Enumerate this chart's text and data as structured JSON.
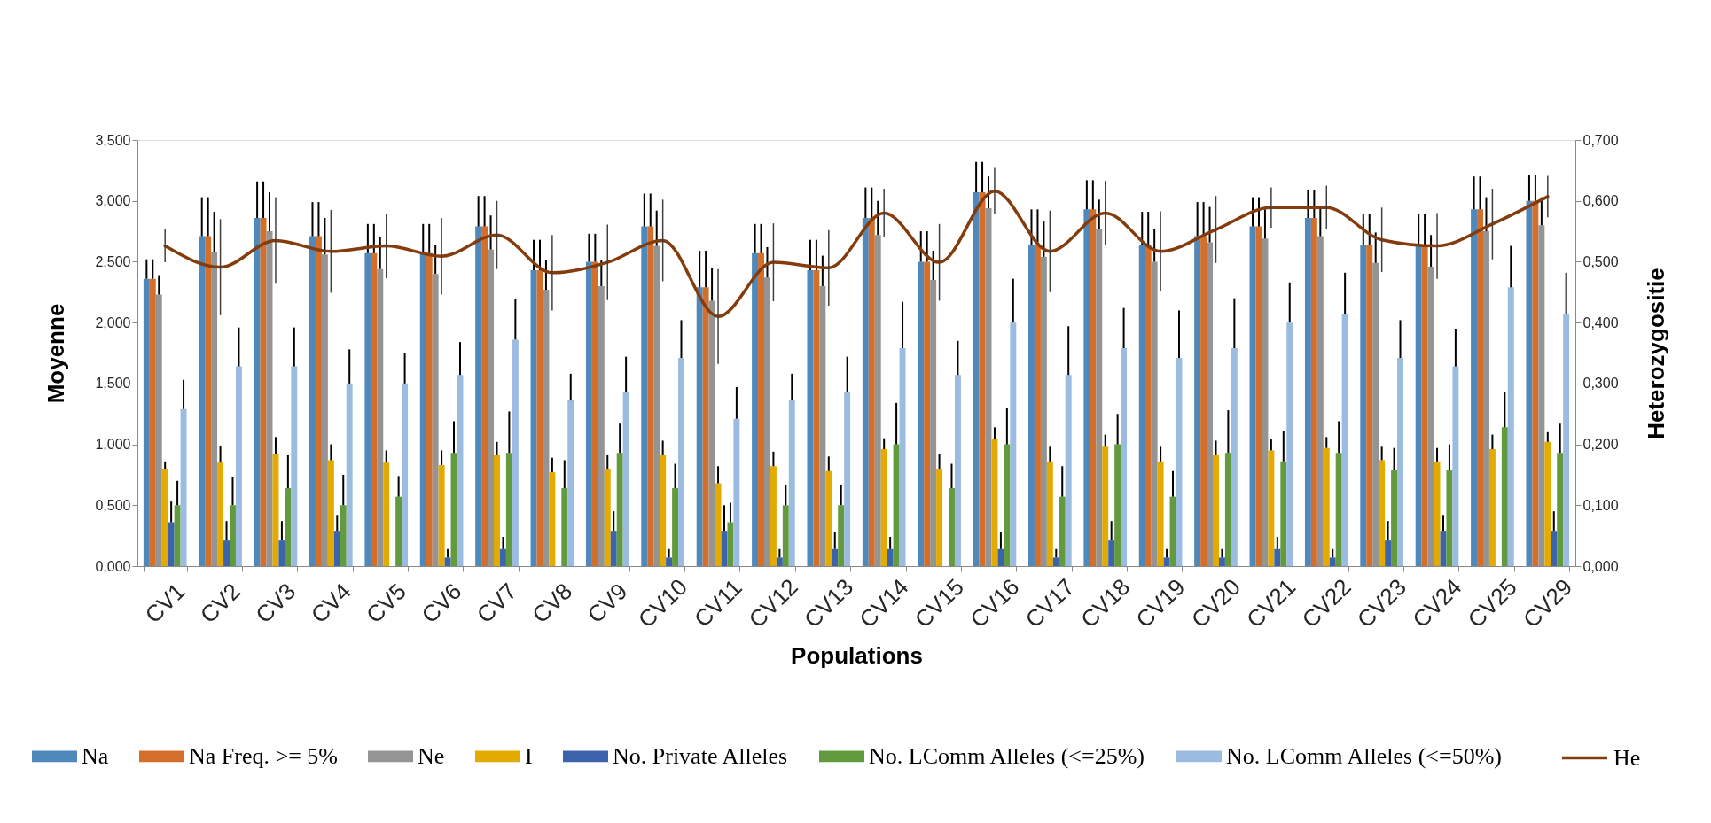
{
  "chart_data": {
    "type": "bar",
    "xlabel": "Populations",
    "ylabel": "Moyenne",
    "y2label": "Heterozygositie",
    "categories": [
      "CV1",
      "CV2",
      "CV3",
      "CV4",
      "CV5",
      "CV6",
      "CV7",
      "CV8",
      "CV9",
      "CV10",
      "CV11",
      "CV12",
      "CV13",
      "CV14",
      "CV15",
      "CV16",
      "CV17",
      "CV18",
      "CV19",
      "CV20",
      "CV21",
      "CV22",
      "CV23",
      "CV24",
      "CV25",
      "CV29"
    ],
    "series": [
      {
        "name": "Na",
        "color": "#4f88bb",
        "values": [
          2.36,
          2.71,
          2.86,
          2.71,
          2.57,
          2.57,
          2.79,
          2.43,
          2.5,
          2.79,
          2.29,
          2.57,
          2.43,
          2.86,
          2.5,
          3.07,
          2.64,
          2.93,
          2.64,
          2.71,
          2.79,
          2.86,
          2.64,
          2.64,
          2.93,
          3.0
        ],
        "errors": [
          [
            2.36,
            2.52
          ],
          [
            2.71,
            3.03
          ],
          [
            2.86,
            3.16
          ],
          [
            2.71,
            2.99
          ],
          [
            2.57,
            2.81
          ],
          [
            2.57,
            2.81
          ],
          [
            2.79,
            3.04
          ],
          [
            2.43,
            2.68
          ],
          [
            2.5,
            2.73
          ],
          [
            2.79,
            3.06
          ],
          [
            2.29,
            2.59
          ],
          [
            2.57,
            2.81
          ],
          [
            2.43,
            2.68
          ],
          [
            2.86,
            3.11
          ],
          [
            2.5,
            2.75
          ],
          [
            3.07,
            3.32
          ],
          [
            2.64,
            2.93
          ],
          [
            2.93,
            3.17
          ],
          [
            2.64,
            2.91
          ],
          [
            2.71,
            2.99
          ],
          [
            2.79,
            3.03
          ],
          [
            2.86,
            3.09
          ],
          [
            2.64,
            2.89
          ],
          [
            2.64,
            2.89
          ],
          [
            2.93,
            3.2
          ],
          [
            3.0,
            3.21
          ]
        ]
      },
      {
        "name": "Na Freq. >= 5%",
        "color": "#d46e2b",
        "values": [
          2.36,
          2.71,
          2.86,
          2.71,
          2.57,
          2.57,
          2.79,
          2.43,
          2.5,
          2.79,
          2.29,
          2.57,
          2.43,
          2.86,
          2.5,
          3.07,
          2.64,
          2.93,
          2.64,
          2.71,
          2.79,
          2.86,
          2.64,
          2.64,
          2.93,
          3.0
        ],
        "errors": [
          [
            2.36,
            2.52
          ],
          [
            2.71,
            3.03
          ],
          [
            2.86,
            3.16
          ],
          [
            2.71,
            2.99
          ],
          [
            2.57,
            2.81
          ],
          [
            2.57,
            2.81
          ],
          [
            2.79,
            3.04
          ],
          [
            2.43,
            2.68
          ],
          [
            2.5,
            2.73
          ],
          [
            2.79,
            3.06
          ],
          [
            2.29,
            2.59
          ],
          [
            2.57,
            2.81
          ],
          [
            2.43,
            2.68
          ],
          [
            2.86,
            3.11
          ],
          [
            2.5,
            2.75
          ],
          [
            3.07,
            3.32
          ],
          [
            2.64,
            2.93
          ],
          [
            2.93,
            3.17
          ],
          [
            2.64,
            2.91
          ],
          [
            2.71,
            2.99
          ],
          [
            2.79,
            3.03
          ],
          [
            2.86,
            3.09
          ],
          [
            2.64,
            2.89
          ],
          [
            2.64,
            2.89
          ],
          [
            2.93,
            3.2
          ],
          [
            3.0,
            3.21
          ]
        ]
      },
      {
        "name": "Ne",
        "color": "#949494",
        "values": [
          2.23,
          2.58,
          2.75,
          2.56,
          2.44,
          2.4,
          2.6,
          2.27,
          2.3,
          2.63,
          2.18,
          2.37,
          2.3,
          2.72,
          2.35,
          2.94,
          2.54,
          2.77,
          2.5,
          2.66,
          2.69,
          2.71,
          2.49,
          2.46,
          2.75,
          2.8
        ],
        "errors": [
          [
            2.23,
            2.39
          ],
          [
            2.58,
            2.91
          ],
          [
            2.75,
            3.07
          ],
          [
            2.56,
            2.86
          ],
          [
            2.44,
            2.7
          ],
          [
            2.4,
            2.64
          ],
          [
            2.6,
            2.88
          ],
          [
            2.27,
            2.51
          ],
          [
            2.3,
            2.51
          ],
          [
            2.63,
            2.92
          ],
          [
            2.18,
            2.45
          ],
          [
            2.37,
            2.62
          ],
          [
            2.3,
            2.55
          ],
          [
            2.72,
            3.0
          ],
          [
            2.35,
            2.59
          ],
          [
            2.94,
            3.2
          ],
          [
            2.54,
            2.83
          ],
          [
            2.77,
            3.01
          ],
          [
            2.5,
            2.77
          ],
          [
            2.66,
            2.95
          ],
          [
            2.69,
            2.93
          ],
          [
            2.71,
            2.94
          ],
          [
            2.49,
            2.74
          ],
          [
            2.46,
            2.72
          ],
          [
            2.75,
            3.03
          ],
          [
            2.8,
            3.03
          ]
        ]
      },
      {
        "name": "I",
        "color": "#e3ab00",
        "values": [
          0.8,
          0.85,
          0.92,
          0.87,
          0.85,
          0.83,
          0.91,
          0.77,
          0.8,
          0.91,
          0.68,
          0.82,
          0.78,
          0.96,
          0.8,
          1.04,
          0.86,
          0.98,
          0.86,
          0.91,
          0.95,
          0.97,
          0.87,
          0.86,
          0.96,
          1.02
        ],
        "errors": [
          [
            0.8,
            0.86
          ],
          [
            0.85,
            0.99
          ],
          [
            0.92,
            1.06
          ],
          [
            0.87,
            1.0
          ],
          [
            0.85,
            0.95
          ],
          [
            0.83,
            0.95
          ],
          [
            0.91,
            1.02
          ],
          [
            0.77,
            0.89
          ],
          [
            0.8,
            0.91
          ],
          [
            0.91,
            1.03
          ],
          [
            0.68,
            0.82
          ],
          [
            0.82,
            0.94
          ],
          [
            0.78,
            0.9
          ],
          [
            0.96,
            1.05
          ],
          [
            0.8,
            0.92
          ],
          [
            1.04,
            1.14
          ],
          [
            0.86,
            0.98
          ],
          [
            0.98,
            1.08
          ],
          [
            0.86,
            0.98
          ],
          [
            0.91,
            1.03
          ],
          [
            0.95,
            1.04
          ],
          [
            0.97,
            1.06
          ],
          [
            0.87,
            0.98
          ],
          [
            0.86,
            0.97
          ],
          [
            0.96,
            1.08
          ],
          [
            1.02,
            1.1
          ]
        ]
      },
      {
        "name": "No. Private Alleles",
        "color": "#3c64ad",
        "values": [
          0.36,
          0.21,
          0.21,
          0.29,
          0,
          0.07,
          0.14,
          0,
          0.29,
          0.07,
          0.29,
          0.07,
          0.14,
          0.14,
          0,
          0.14,
          0.07,
          0.21,
          0.07,
          0.07,
          0.14,
          0.07,
          0.21,
          0.29,
          0,
          0.29
        ],
        "errors": [
          [
            0.36,
            0.53
          ],
          [
            0.21,
            0.37
          ],
          [
            0.21,
            0.37
          ],
          [
            0.29,
            0.42
          ],
          null,
          [
            0.07,
            0.14
          ],
          [
            0.14,
            0.24
          ],
          null,
          [
            0.29,
            0.45
          ],
          [
            0.07,
            0.14
          ],
          [
            0.29,
            0.5
          ],
          [
            0.07,
            0.14
          ],
          [
            0.14,
            0.28
          ],
          [
            0.14,
            0.24
          ],
          null,
          [
            0.14,
            0.28
          ],
          [
            0.07,
            0.14
          ],
          [
            0.21,
            0.37
          ],
          [
            0.07,
            0.14
          ],
          [
            0.07,
            0.14
          ],
          [
            0.14,
            0.24
          ],
          [
            0.07,
            0.14
          ],
          [
            0.21,
            0.37
          ],
          [
            0.29,
            0.42
          ],
          null,
          [
            0.29,
            0.45
          ]
        ]
      },
      {
        "name": "No. LComm Alleles (<=25%)",
        "color": "#629a3e",
        "values": [
          0.5,
          0.5,
          0.64,
          0.5,
          0.57,
          0.93,
          0.93,
          0.64,
          0.93,
          0.64,
          0.36,
          0.5,
          0.5,
          1.0,
          0.64,
          1.0,
          0.57,
          1.0,
          0.57,
          0.93,
          0.86,
          0.93,
          0.79,
          0.79,
          1.14,
          0.93
        ],
        "errors": [
          [
            0.5,
            0.7
          ],
          [
            0.5,
            0.73
          ],
          [
            0.64,
            0.91
          ],
          [
            0.5,
            0.75
          ],
          [
            0.57,
            0.74
          ],
          [
            0.93,
            1.19
          ],
          [
            0.93,
            1.27
          ],
          [
            0.64,
            0.87
          ],
          [
            0.93,
            1.17
          ],
          [
            0.64,
            0.84
          ],
          [
            0.36,
            0.52
          ],
          [
            0.5,
            0.67
          ],
          [
            0.5,
            0.67
          ],
          [
            1.0,
            1.34
          ],
          [
            0.64,
            0.84
          ],
          [
            1.0,
            1.3
          ],
          [
            0.57,
            0.82
          ],
          [
            1.0,
            1.25
          ],
          [
            0.57,
            0.78
          ],
          [
            0.93,
            1.28
          ],
          [
            0.86,
            1.11
          ],
          [
            0.93,
            1.19
          ],
          [
            0.79,
            0.97
          ],
          [
            0.79,
            1.0
          ],
          [
            1.14,
            1.43
          ],
          [
            0.93,
            1.17
          ]
        ]
      },
      {
        "name": "No. LComm Alleles (<=50%)",
        "color": "#9bbbe0",
        "values": [
          1.29,
          1.64,
          1.64,
          1.5,
          1.5,
          1.57,
          1.86,
          1.36,
          1.43,
          1.71,
          1.21,
          1.36,
          1.43,
          1.79,
          1.57,
          2.0,
          1.57,
          1.79,
          1.71,
          1.79,
          2.0,
          2.07,
          1.71,
          1.64,
          2.29,
          2.07
        ],
        "errors": [
          [
            1.29,
            1.53
          ],
          [
            1.64,
            1.96
          ],
          [
            1.64,
            1.96
          ],
          [
            1.5,
            1.78
          ],
          [
            1.5,
            1.75
          ],
          [
            1.57,
            1.84
          ],
          [
            1.86,
            2.19
          ],
          [
            1.36,
            1.58
          ],
          [
            1.43,
            1.72
          ],
          [
            1.71,
            2.02
          ],
          [
            1.21,
            1.47
          ],
          [
            1.36,
            1.58
          ],
          [
            1.43,
            1.72
          ],
          [
            1.79,
            2.17
          ],
          [
            1.57,
            1.85
          ],
          [
            2.0,
            2.36
          ],
          [
            1.57,
            1.97
          ],
          [
            1.79,
            2.12
          ],
          [
            1.71,
            2.1
          ],
          [
            1.79,
            2.2
          ],
          [
            2.0,
            2.33
          ],
          [
            2.07,
            2.41
          ],
          [
            1.71,
            2.02
          ],
          [
            1.64,
            1.95
          ],
          [
            2.29,
            2.63
          ],
          [
            2.07,
            2.41
          ]
        ]
      },
      {
        "name": "He",
        "type": "line",
        "axis": "y2",
        "color": "#843c0c",
        "values": [
          0.526,
          0.491,
          0.535,
          0.517,
          0.526,
          0.509,
          0.544,
          0.482,
          0.499,
          0.535,
          0.41,
          0.499,
          0.49,
          0.58,
          0.499,
          0.616,
          0.517,
          0.58,
          0.517,
          0.553,
          0.589,
          0.589,
          0.536,
          0.526,
          0.562,
          0.607
        ],
        "errors": [
          0.027,
          0.079,
          0.071,
          0.068,
          0.053,
          0.063,
          0.056,
          0.062,
          0.062,
          0.067,
          0.078,
          0.064,
          0.062,
          0.04,
          0.063,
          0.038,
          0.067,
          0.053,
          0.066,
          0.055,
          0.033,
          0.036,
          0.053,
          0.054,
          0.058,
          0.034
        ]
      }
    ],
    "ylim": [
      0,
      3.5
    ],
    "yticks": [
      {
        "value": 0,
        "label": "0,000"
      },
      {
        "value": 0.5,
        "label": "0,500"
      },
      {
        "value": 1,
        "label": "1,000"
      },
      {
        "value": 1.5,
        "label": "1,500"
      },
      {
        "value": 2,
        "label": "2,000"
      },
      {
        "value": 2.5,
        "label": "2,500"
      },
      {
        "value": 3,
        "label": "3,000"
      },
      {
        "value": 3.5,
        "label": "3,500"
      }
    ],
    "y2lim": [
      0,
      0.7
    ],
    "y2ticks": [
      {
        "value": 0,
        "label": "0,000"
      },
      {
        "value": 0.1,
        "label": "0,100"
      },
      {
        "value": 0.2,
        "label": "0,200"
      },
      {
        "value": 0.3,
        "label": "0,300"
      },
      {
        "value": 0.4,
        "label": "0,400"
      },
      {
        "value": 0.5,
        "label": "0,500"
      },
      {
        "value": 0.6,
        "label": "0,600"
      },
      {
        "value": 0.7,
        "label": "0,700"
      }
    ],
    "grid": false,
    "legend": "bottom"
  }
}
